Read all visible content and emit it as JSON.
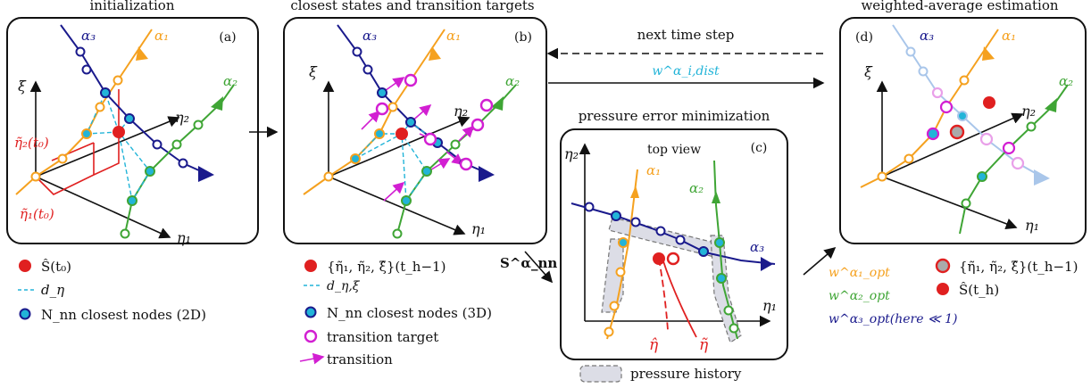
{
  "titles": {
    "a": "initialization",
    "b": "closest states and transition targets",
    "c": "pressure error minimization",
    "d": "weighted-average estimation",
    "top_view": "top view",
    "next_step": "next time step"
  },
  "panel_tags": {
    "a": "(a)",
    "b": "(b)",
    "c": "(c)",
    "d": "(d)"
  },
  "axes": {
    "xi": "ξ",
    "eta1": "η₁",
    "eta2": "η₂"
  },
  "branches": {
    "a1": "α₁",
    "a2": "α₂",
    "a3": "α₃"
  },
  "arrow_labels": {
    "w_dist": "w^α_i,dist",
    "s_nn": "S^α_nn",
    "eta_hat": "η̂",
    "eta_tilde": "η̃",
    "eta1_t0": "η̃₁(t₀)",
    "eta2_t0": "η̃₂(t₀)"
  },
  "legend_a": {
    "item1": "Ŝ(t₀)",
    "item2": "d_η",
    "item3": "N_nn closest nodes (2D)"
  },
  "legend_b": {
    "item1": "{η̃₁, η̃₂, ξ̂}(t_h−1)",
    "item2": "d_η,ξ",
    "item3": "N_nn closest nodes (3D)",
    "item4": "transition target",
    "item5": "transition"
  },
  "legend_c": {
    "item1": "pressure history"
  },
  "legend_d": {
    "w1": "w^α₁_opt",
    "w2": "w^α₂_opt",
    "w3": "w^α₃_opt(here ≪ 1)",
    "item1": "{η̃₁, η̃₂, ξ̂}(t_h−1)",
    "item2": "Ŝ(t_h)"
  },
  "colors": {
    "orange": "#f5a11f",
    "green": "#3fa535",
    "navy": "#1a1a8c",
    "red": "#e02020",
    "cyan": "#22b4d8",
    "magenta": "#d21fd2",
    "lightblue": "#a9c6ea",
    "pink": "#e9a0e9"
  }
}
